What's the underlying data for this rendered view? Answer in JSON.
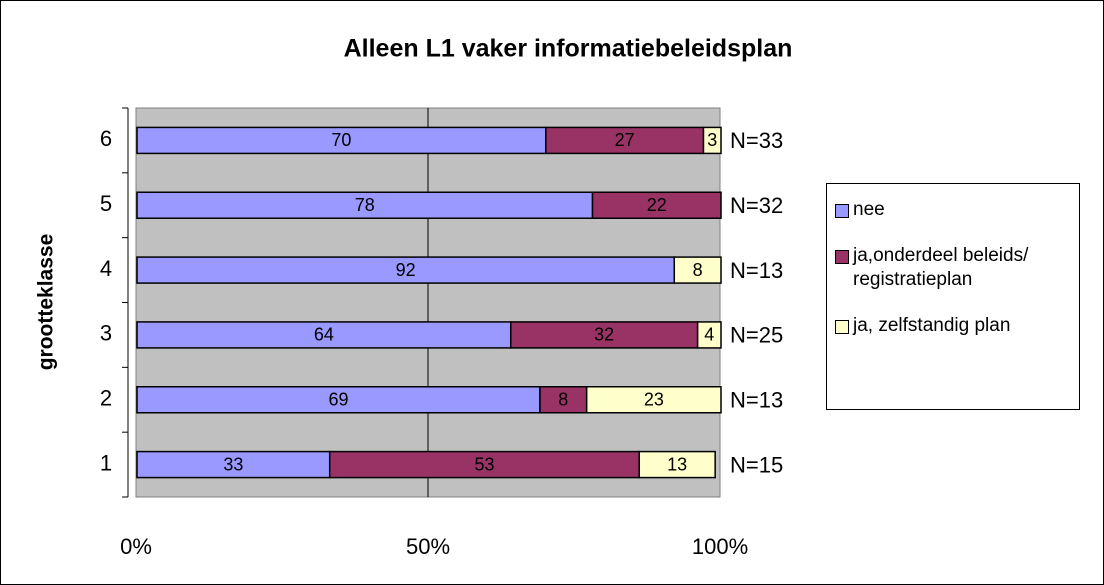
{
  "chart_data": {
    "type": "bar",
    "orientation": "horizontal",
    "stacked": true,
    "title": "Alleen L1 vaker informatiebeleidsplan",
    "y_label": "grootteklasse",
    "categories": [
      "1",
      "2",
      "3",
      "4",
      "5",
      "6"
    ],
    "series": [
      {
        "name": "nee",
        "color": "#9999ff",
        "values": [
          33,
          69,
          64,
          92,
          78,
          70
        ]
      },
      {
        "name": "ja,onderdeel beleids/ registratieplan",
        "color": "#993366",
        "values": [
          53,
          8,
          32,
          null,
          22,
          27
        ]
      },
      {
        "name": "ja, zelfstandig plan",
        "color": "#ffffcc",
        "values": [
          13,
          23,
          4,
          8,
          null,
          3
        ]
      }
    ],
    "annotations": [
      "N=15",
      "N=13",
      "N=25",
      "N=13",
      "N=32",
      "N=33"
    ],
    "xlim": [
      0,
      100
    ],
    "xticks": [
      {
        "value": 0,
        "label": "0%"
      },
      {
        "value": 50,
        "label": "50%"
      },
      {
        "value": 100,
        "label": "100%"
      }
    ],
    "grid": true,
    "plot_background": "#c0c0c0",
    "legend": "right"
  }
}
